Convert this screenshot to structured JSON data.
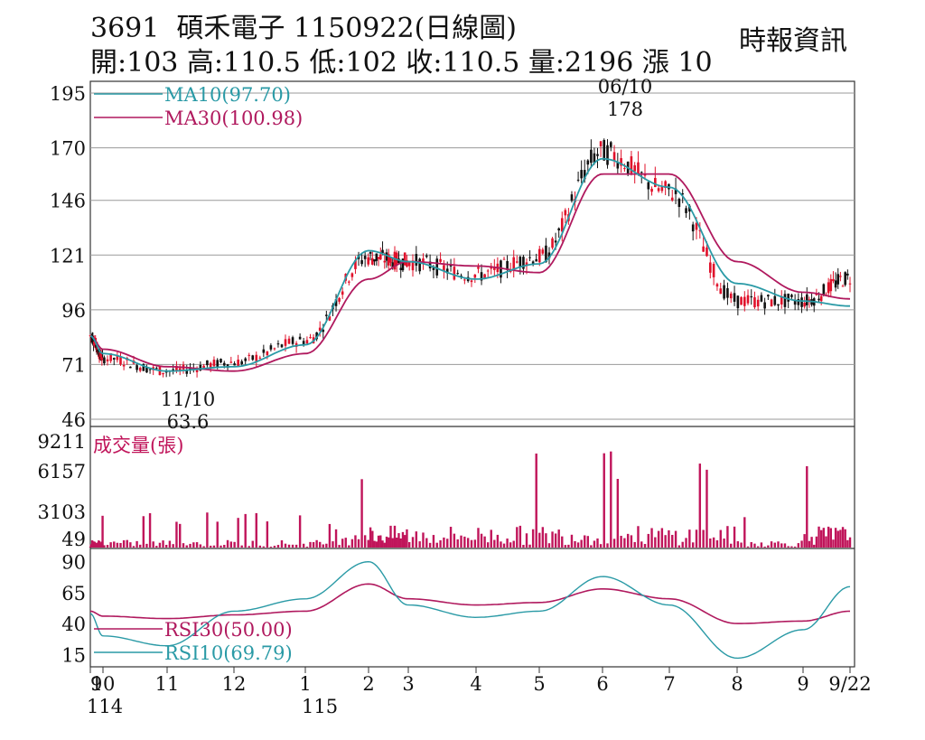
{
  "header": {
    "title": "3691  碩禾電子 1150922(日線圖)",
    "summary": "開:103 高:110.5 低:102 收:110.5 量:2196 漲 10",
    "source": "時報資訊"
  },
  "colors": {
    "ma10": "#2a9aa6",
    "ma30": "#b0195e",
    "volume": "#c0145a",
    "candle_up": "#e0102a",
    "candle_down": "#111111",
    "grid": "#9a9a9a"
  },
  "chart_data": [
    {
      "type": "candlestick",
      "title": "3691  碩禾電子 1150922(日線圖)",
      "y_ticks": [
        "195",
        "170",
        "146",
        "121",
        "96",
        "71",
        "46"
      ],
      "ylim": [
        46,
        195
      ],
      "x_month_labels": [
        "9",
        "10",
        "11",
        "12",
        "1",
        "2",
        "3",
        "4",
        "5",
        "6",
        "7",
        "8",
        "9",
        "9/22"
      ],
      "x_year_labels": [
        "114",
        "115"
      ],
      "legend": [
        {
          "name": "MA10(97.70)",
          "color": "#2a9aa6"
        },
        {
          "name": "MA30(100.98)",
          "color": "#b0195e"
        }
      ],
      "annotations": [
        {
          "date": "06/10",
          "text": "178",
          "kind": "high"
        },
        {
          "date": "11/10",
          "text": "63.6",
          "kind": "low"
        }
      ],
      "series_anchor_points": {
        "note_months": [
          "9/1",
          "10",
          "11",
          "12",
          "1",
          "2",
          "3",
          "4",
          "5",
          "6",
          "7",
          "8",
          "9",
          "9/22"
        ],
        "close_approx": [
          84,
          74,
          68,
          72,
          82,
          120,
          118,
          112,
          120,
          168,
          150,
          100,
          100,
          110.5
        ],
        "ma10_approx": [
          84,
          76,
          68,
          70,
          80,
          123,
          118,
          110,
          117,
          165,
          152,
          108,
          100,
          97.7
        ],
        "ma30_approx": [
          84,
          78,
          70,
          68,
          76,
          110,
          118,
          116,
          113,
          158,
          158,
          118,
          104,
          100.98
        ]
      }
    },
    {
      "type": "bar",
      "title": "成交量(張)",
      "y_ticks": [
        "9211",
        "6157",
        "3103",
        "49"
      ],
      "ylim": [
        49,
        9211
      ]
    },
    {
      "type": "line",
      "y_ticks": [
        "90",
        "65",
        "40",
        "15"
      ],
      "ylim": [
        15,
        90
      ],
      "legend": [
        {
          "name": "RSI30(50.00)",
          "color": "#b0195e"
        },
        {
          "name": "RSI10(69.79)",
          "color": "#2a9aa6"
        }
      ]
    }
  ]
}
